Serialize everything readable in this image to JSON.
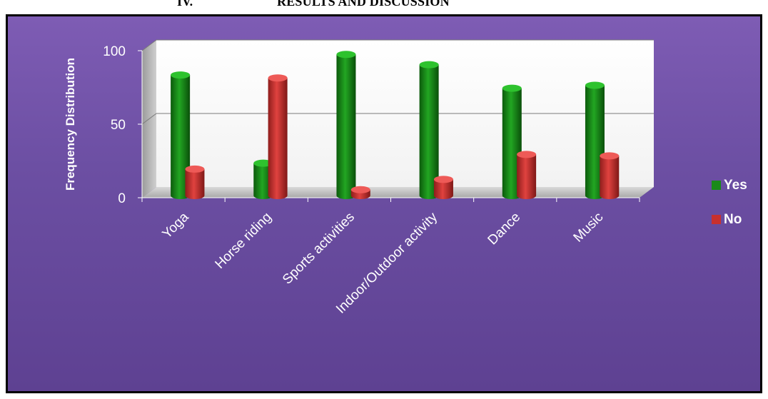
{
  "heading": {
    "number": "IV.",
    "title": "RESULTS AND DISCUSSION"
  },
  "chart_data": {
    "type": "bar",
    "title": "",
    "xlabel": "",
    "ylabel": "Frequency Distribution",
    "categories": [
      "Yoga",
      "Horse riding",
      "Sports activities",
      "Indoor/Outdoor activity",
      "Dance",
      "Music"
    ],
    "series": [
      {
        "name": "Yes",
        "color": "#1a8a1a",
        "values": [
          82,
          22,
          96,
          89,
          73,
          75
        ]
      },
      {
        "name": "No",
        "color": "#c8302e",
        "values": [
          18,
          80,
          4,
          11,
          28,
          27
        ]
      }
    ],
    "ylim": [
      0,
      100
    ],
    "yticks": [
      0,
      50,
      100
    ],
    "grid": true,
    "legend_position": "right",
    "colors": {
      "background": "#7458ab",
      "text": "#ffffff"
    }
  }
}
